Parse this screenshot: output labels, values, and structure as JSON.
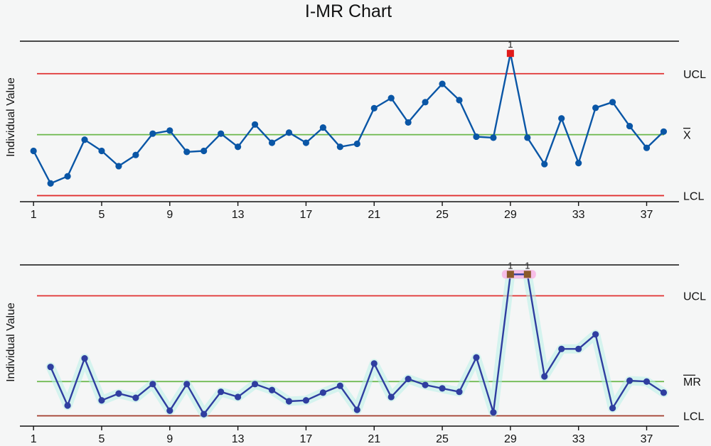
{
  "title": "I-MR Chart",
  "colors": {
    "background": "#f5f6f6",
    "i_line": "#0a56a6",
    "mr_line": "#2f3ea0",
    "ucl": "#e03030",
    "lcl_i": "#e03030",
    "lcl_mr": "#a03a2a",
    "center": "#6ab84a",
    "out_of_control_i": "#e01a1a",
    "out_of_control_mr": "#8a5a2a",
    "mr_glow": "#b8f0e8",
    "flag_glow": "#f7b8e6"
  },
  "chart_data": [
    {
      "type": "line",
      "name": "individuals",
      "ylabel": "Individual Value",
      "x_ticks": [
        1,
        5,
        9,
        13,
        17,
        21,
        25,
        29,
        33,
        37
      ],
      "xlim": [
        0.2,
        38.9
      ],
      "ylim": [
        -3.3,
        4.6
      ],
      "limits": {
        "UCL": 3.0,
        "X": 0.0,
        "LCL": -3.0
      },
      "limit_labels": {
        "ucl": "UCL",
        "center": "X",
        "lcl": "LCL"
      },
      "x": [
        1,
        2,
        3,
        4,
        5,
        6,
        7,
        8,
        9,
        10,
        11,
        12,
        13,
        14,
        15,
        16,
        17,
        18,
        19,
        20,
        21,
        22,
        23,
        24,
        25,
        26,
        27,
        28,
        29,
        30,
        31,
        32,
        33,
        34,
        35,
        36,
        37,
        38
      ],
      "values": [
        -0.8,
        -2.4,
        -2.05,
        -0.25,
        -0.8,
        -1.55,
        -1.0,
        0.05,
        0.2,
        -0.85,
        -0.8,
        0.05,
        -0.6,
        0.5,
        -0.4,
        0.1,
        -0.4,
        0.35,
        -0.6,
        -0.45,
        1.3,
        1.8,
        0.6,
        1.6,
        2.5,
        1.7,
        -0.1,
        -0.15,
        4.0,
        -0.15,
        -1.45,
        0.8,
        -1.4,
        1.32,
        1.6,
        0.42,
        -0.65,
        0.15
      ],
      "flagged": [
        {
          "x": 29,
          "label": "1"
        }
      ]
    },
    {
      "type": "line",
      "name": "moving_range",
      "ylabel": "Individual Value",
      "x_ticks": [
        1,
        5,
        9,
        13,
        17,
        21,
        25,
        29,
        33,
        37
      ],
      "xlim": [
        0.2,
        38.9
      ],
      "ylim": [
        -0.6,
        8.8
      ],
      "limits": {
        "UCL": 7.0,
        "MR": 2.0,
        "LCL": 0.0
      },
      "limit_labels": {
        "ucl": "UCL",
        "center": "MR",
        "lcl": "LCL"
      },
      "x": [
        2,
        3,
        4,
        5,
        6,
        7,
        8,
        9,
        10,
        11,
        12,
        13,
        14,
        15,
        16,
        17,
        18,
        19,
        20,
        21,
        22,
        23,
        24,
        25,
        26,
        27,
        28,
        29,
        30,
        31,
        32,
        33,
        34,
        35,
        36,
        37,
        38
      ],
      "values": [
        2.85,
        0.6,
        3.35,
        0.9,
        1.3,
        1.05,
        1.85,
        0.3,
        1.85,
        0.1,
        1.4,
        1.1,
        1.85,
        1.5,
        0.85,
        0.9,
        1.35,
        1.75,
        0.35,
        3.05,
        1.1,
        2.15,
        1.8,
        1.6,
        1.4,
        3.4,
        0.2,
        8.25,
        8.25,
        2.3,
        3.9,
        3.9,
        4.75,
        0.45,
        2.05,
        2.0,
        1.35
      ],
      "flagged": [
        {
          "x": 29,
          "label": "1"
        },
        {
          "x": 30,
          "label": "1"
        }
      ]
    }
  ]
}
